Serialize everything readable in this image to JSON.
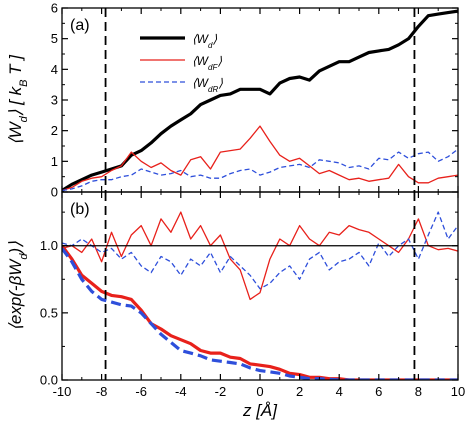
{
  "chart_data": [
    {
      "panel": "(a)",
      "type": "line",
      "ylabel": "⟨W_d⟩ [ k_B T ]",
      "xlim": [
        -10,
        10
      ],
      "ylim": [
        0,
        6
      ],
      "xticks": [
        -10,
        -8,
        -6,
        -4,
        -2,
        0,
        2,
        4,
        6,
        8,
        10
      ],
      "yticks": [
        0,
        1,
        2,
        3,
        4,
        5,
        6
      ],
      "vlines": [
        -7.8,
        7.8
      ],
      "legend_position": "top-center",
      "series": [
        {
          "name": "⟨W_d⟩",
          "color": "#000000",
          "style": "solid-thick",
          "x": [
            -10,
            -9.5,
            -9,
            -8.5,
            -8,
            -7.5,
            -7,
            -6.5,
            -6,
            -5.5,
            -5,
            -4.5,
            -4,
            -3.5,
            -3,
            -2.5,
            -2,
            -1.5,
            -1,
            -0.5,
            0,
            0.5,
            1,
            1.5,
            2,
            2.5,
            3,
            3.5,
            4,
            4.5,
            5,
            5.5,
            6,
            6.5,
            7,
            7.5,
            8,
            8.5,
            9,
            9.5,
            10
          ],
          "y": [
            0.05,
            0.25,
            0.4,
            0.55,
            0.65,
            0.75,
            0.85,
            1.2,
            1.35,
            1.6,
            1.9,
            2.15,
            2.35,
            2.55,
            2.85,
            3.0,
            3.15,
            3.2,
            3.35,
            3.35,
            3.35,
            3.2,
            3.55,
            3.7,
            3.75,
            3.65,
            3.95,
            4.1,
            4.25,
            4.25,
            4.4,
            4.55,
            4.6,
            4.65,
            4.8,
            5.0,
            5.4,
            5.75,
            5.8,
            5.85,
            5.9
          ]
        },
        {
          "name": "⟨W_dF⟩",
          "color": "#e8211b",
          "style": "solid-thin",
          "x": [
            -10,
            -9.5,
            -9,
            -8.5,
            -8,
            -7.5,
            -7,
            -6.5,
            -6,
            -5.5,
            -5,
            -4.5,
            -4,
            -3.5,
            -3,
            -2.5,
            -2,
            -1.5,
            -1,
            -0.5,
            0,
            0.5,
            1,
            1.5,
            2,
            2.5,
            3,
            3.5,
            4,
            4.5,
            5,
            5.5,
            6,
            6.5,
            7,
            7.5,
            8,
            8.5,
            9,
            9.5,
            10
          ],
          "y": [
            0.05,
            0.15,
            0.35,
            0.45,
            0.5,
            0.7,
            0.85,
            1.3,
            1.0,
            0.8,
            0.95,
            0.7,
            0.55,
            1.05,
            1.15,
            0.75,
            1.3,
            1.35,
            1.4,
            1.75,
            2.15,
            1.65,
            1.2,
            1.0,
            1.1,
            0.85,
            0.6,
            0.7,
            0.55,
            0.4,
            0.45,
            0.35,
            0.4,
            0.45,
            0.9,
            0.5,
            0.3,
            0.3,
            0.45,
            0.5,
            0.55
          ]
        },
        {
          "name": "⟨W_dR⟩",
          "color": "#2e4fdb",
          "style": "dashed",
          "x": [
            -10,
            -9.5,
            -9,
            -8.5,
            -8,
            -7.5,
            -7,
            -6.5,
            -6,
            -5.5,
            -5,
            -4.5,
            -4,
            -3.5,
            -3,
            -2.5,
            -2,
            -1.5,
            -1,
            -0.5,
            0,
            0.5,
            1,
            1.5,
            2,
            2.5,
            3,
            3.5,
            4,
            4.5,
            5,
            5.5,
            6,
            6.5,
            7,
            7.5,
            8,
            8.5,
            9,
            9.5,
            10
          ],
          "y": [
            0.05,
            0.1,
            0.2,
            0.35,
            0.4,
            0.4,
            0.5,
            0.55,
            0.75,
            0.65,
            0.55,
            0.6,
            0.7,
            0.5,
            0.55,
            0.45,
            0.45,
            0.6,
            0.7,
            0.75,
            0.55,
            0.65,
            0.8,
            0.85,
            0.9,
            0.8,
            1.05,
            1.0,
            0.95,
            0.8,
            0.85,
            0.75,
            1.1,
            1.05,
            1.3,
            1.1,
            1.25,
            1.3,
            1.0,
            1.15,
            1.4
          ]
        }
      ]
    },
    {
      "panel": "(b)",
      "type": "line",
      "ylabel": "⟨exp(-βW_d)⟩",
      "xlabel": "z [Å]",
      "xlim": [
        -10,
        10
      ],
      "ylim": [
        0,
        1.4
      ],
      "xticks": [
        -10,
        -8,
        -6,
        -4,
        -2,
        0,
        2,
        4,
        6,
        8,
        10
      ],
      "yticks": [
        0.0,
        0.5,
        1.0
      ],
      "hline": 1.0,
      "vlines": [
        -7.8,
        7.8
      ],
      "series": [
        {
          "color": "#e8211b",
          "style": "solid-thin",
          "x": [
            -10,
            -9.5,
            -9,
            -8.5,
            -8,
            -7.5,
            -7,
            -6.5,
            -6,
            -5.5,
            -5,
            -4.5,
            -4,
            -3.5,
            -3,
            -2.5,
            -2,
            -1.5,
            -1,
            -0.5,
            0,
            0.5,
            1,
            1.5,
            2,
            2.5,
            3,
            3.5,
            4,
            4.5,
            5,
            5.5,
            6,
            6.5,
            7,
            7.5,
            8,
            8.5,
            9,
            9.5,
            10
          ],
          "y": [
            0.98,
            1.0,
            0.95,
            1.05,
            0.88,
            1.1,
            0.92,
            1.08,
            1.15,
            1.0,
            1.2,
            1.1,
            1.25,
            1.05,
            1.15,
            1.0,
            1.08,
            0.9,
            0.82,
            0.6,
            0.65,
            0.9,
            1.05,
            1.0,
            1.15,
            1.05,
            1.0,
            1.1,
            1.08,
            1.15,
            1.12,
            1.1,
            1.05,
            1.0,
            0.95,
            1.05,
            1.2,
            1.0,
            0.97,
            0.98,
            0.96
          ]
        },
        {
          "color": "#2e4fdb",
          "style": "dashed",
          "x": [
            -10,
            -9.5,
            -9,
            -8.5,
            -8,
            -7.5,
            -7,
            -6.5,
            -6,
            -5.5,
            -5,
            -4.5,
            -4,
            -3.5,
            -3,
            -2.5,
            -2,
            -1.5,
            -1,
            -0.5,
            0,
            0.5,
            1,
            1.5,
            2,
            2.5,
            3,
            3.5,
            4,
            4.5,
            5,
            5.5,
            6,
            6.5,
            7,
            7.5,
            8,
            8.5,
            9,
            9.5,
            10
          ],
          "y": [
            1.02,
            1.0,
            1.05,
            1.0,
            0.95,
            0.98,
            0.9,
            0.95,
            0.85,
            0.8,
            0.92,
            0.88,
            0.78,
            0.9,
            0.85,
            0.95,
            0.8,
            0.92,
            0.85,
            0.78,
            0.68,
            0.72,
            0.8,
            0.85,
            0.75,
            0.9,
            0.95,
            0.82,
            0.88,
            0.9,
            0.95,
            0.85,
            1.02,
            0.92,
            1.0,
            1.05,
            0.9,
            1.08,
            1.25,
            1.05,
            1.15
          ]
        },
        {
          "color": "#e8211b",
          "style": "solid-thick",
          "x": [
            -10,
            -9.5,
            -9,
            -8.5,
            -8,
            -7.5,
            -7,
            -6.5,
            -6,
            -5.5,
            -5,
            -4.5,
            -4,
            -3.5,
            -3,
            -2.5,
            -2,
            -1.5,
            -1,
            -0.5,
            0,
            0.5,
            1,
            1.5,
            2,
            2.5,
            3,
            3.5,
            4,
            4.5,
            5,
            6,
            7,
            8,
            9,
            10
          ],
          "y": [
            1.0,
            0.9,
            0.78,
            0.72,
            0.66,
            0.63,
            0.62,
            0.6,
            0.52,
            0.42,
            0.38,
            0.33,
            0.3,
            0.27,
            0.22,
            0.2,
            0.2,
            0.17,
            0.16,
            0.12,
            0.11,
            0.1,
            0.08,
            0.05,
            0.04,
            0.02,
            0.02,
            0.01,
            0.01,
            0.0,
            0.0,
            0.0,
            0.0,
            0.0,
            0.0,
            0.0
          ]
        },
        {
          "color": "#2e4fdb",
          "style": "dashed-thick",
          "x": [
            -10,
            -9.5,
            -9,
            -8.5,
            -8,
            -7.5,
            -7,
            -6.5,
            -6,
            -5.5,
            -5,
            -4.5,
            -4,
            -3.5,
            -3,
            -2.5,
            -2,
            -1.5,
            -1,
            -0.5,
            0,
            0.5,
            1,
            1.5,
            2,
            2.5,
            3,
            4,
            5,
            6,
            7,
            8,
            9,
            10
          ],
          "y": [
            0.98,
            0.88,
            0.75,
            0.66,
            0.6,
            0.58,
            0.56,
            0.55,
            0.5,
            0.42,
            0.34,
            0.28,
            0.22,
            0.2,
            0.18,
            0.15,
            0.14,
            0.13,
            0.12,
            0.09,
            0.07,
            0.06,
            0.05,
            0.03,
            0.02,
            0.01,
            0.01,
            0.0,
            0.0,
            0.0,
            0.0,
            0.0,
            0.0,
            0.0
          ]
        }
      ]
    }
  ]
}
